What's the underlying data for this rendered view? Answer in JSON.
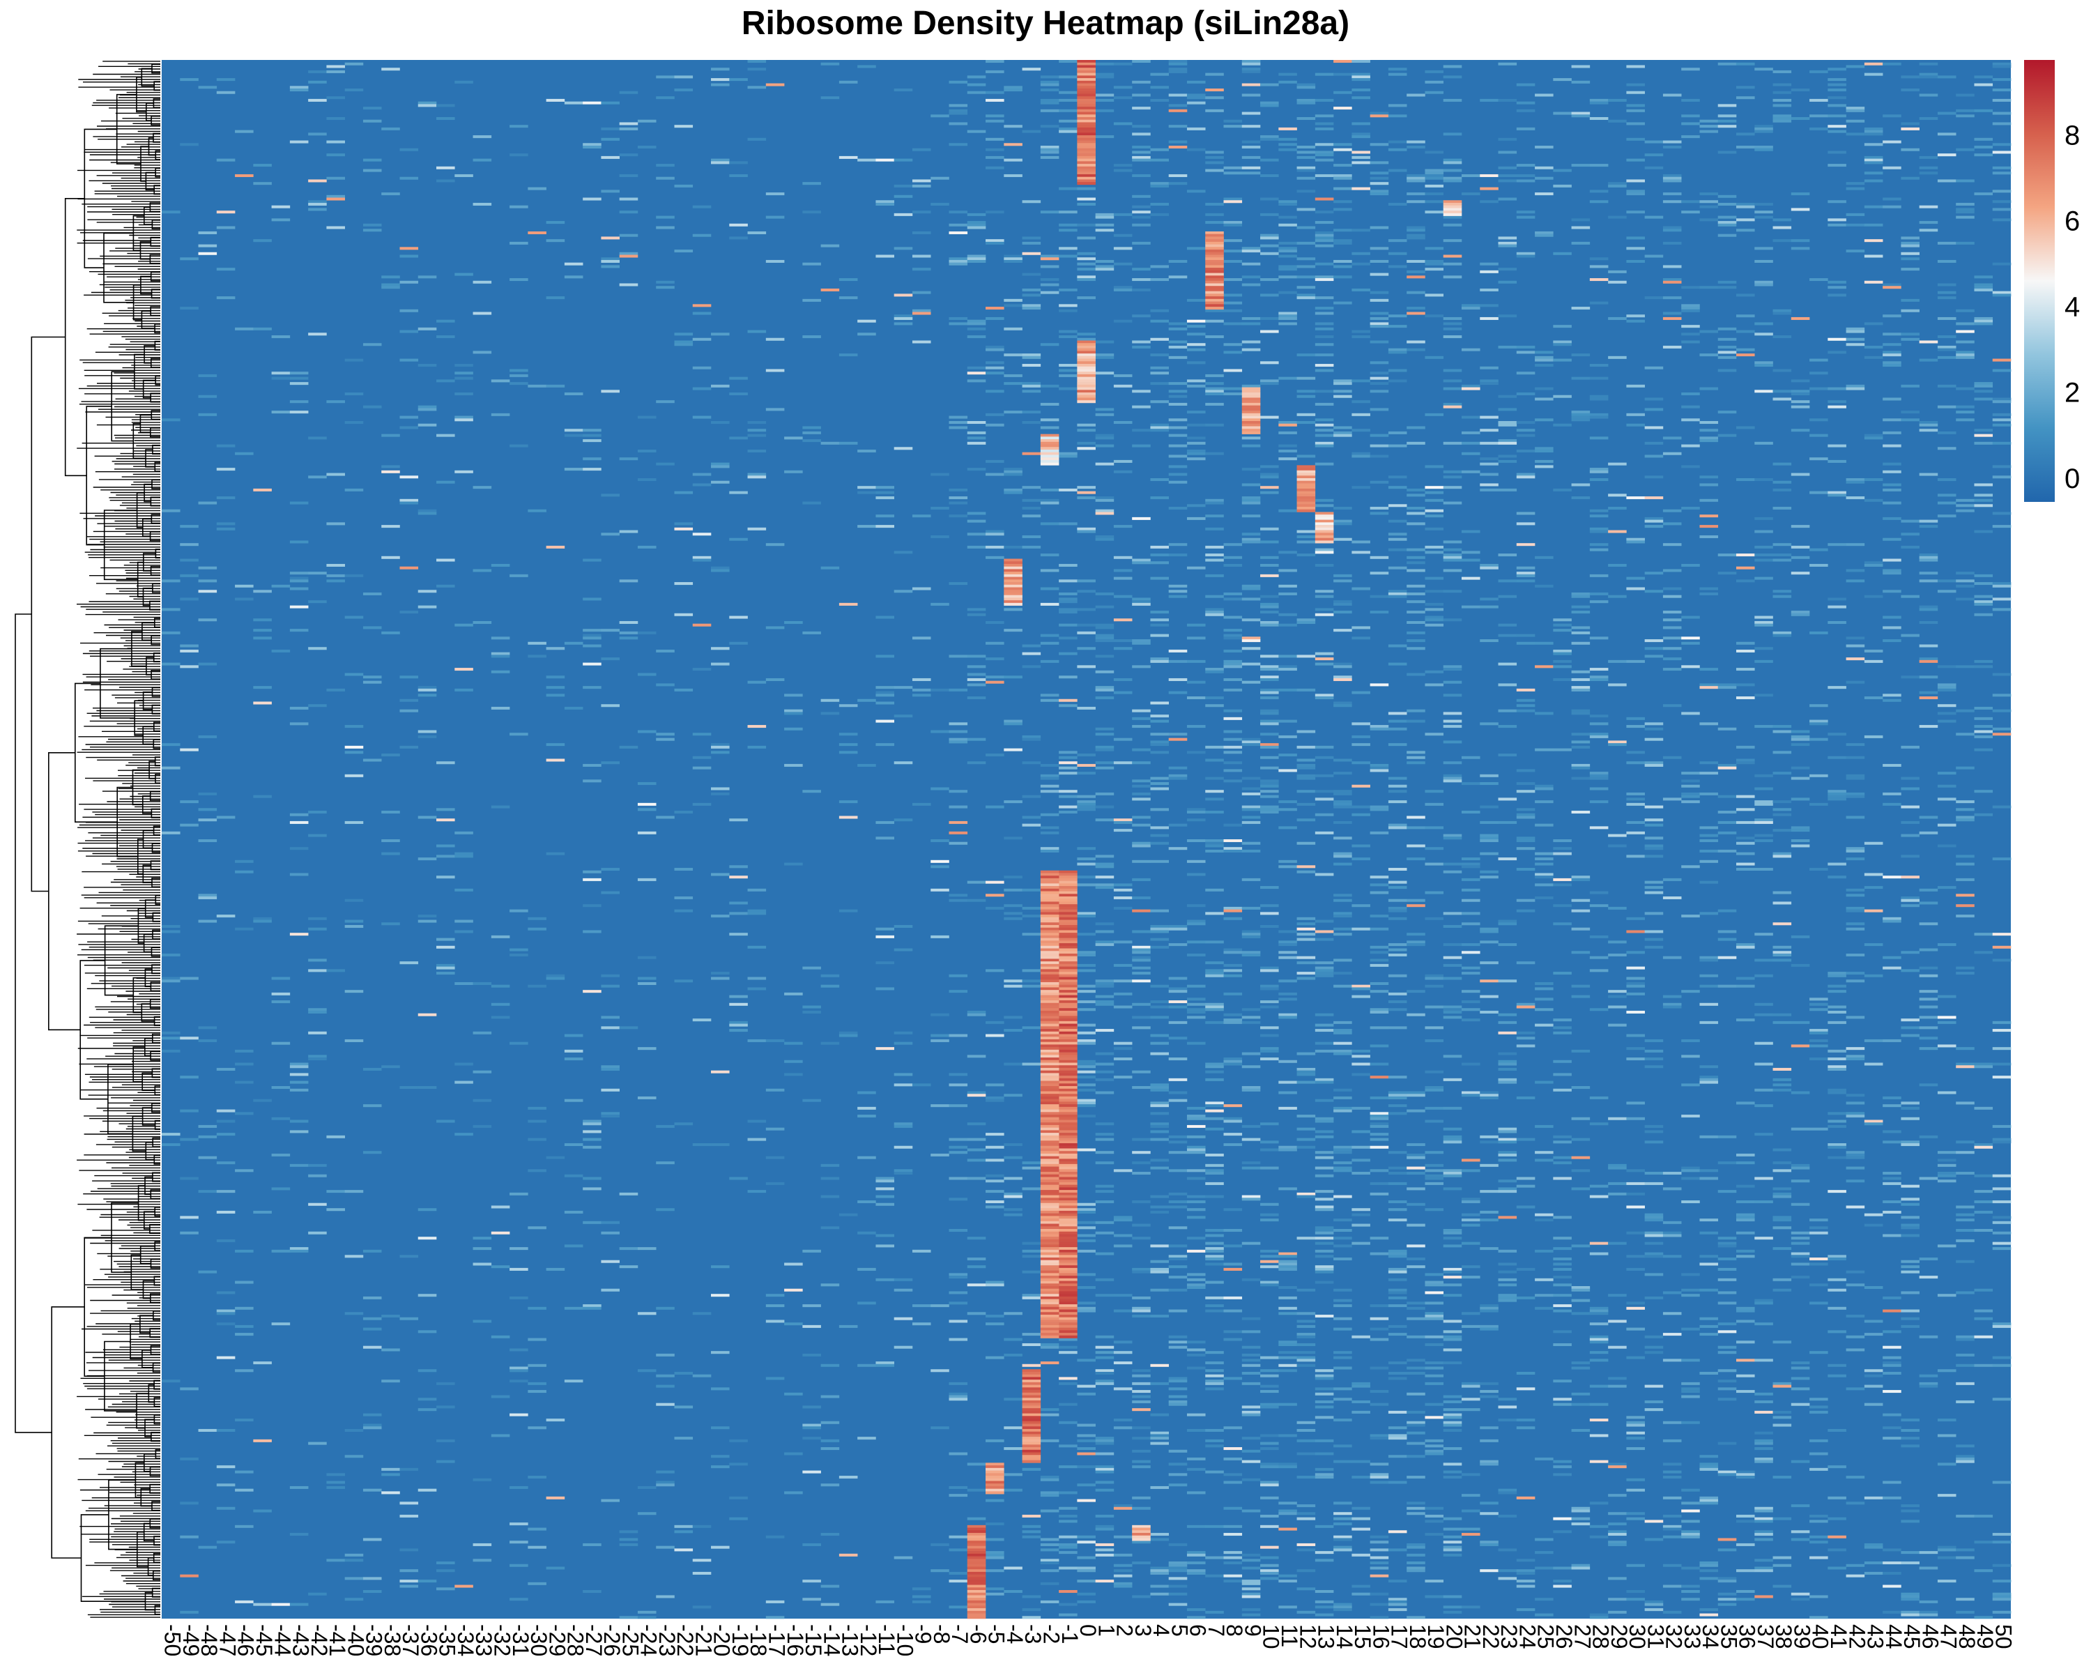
{
  "chart_data": {
    "type": "heatmap",
    "title": "Ribosome Density Heatmap (siLin28a)",
    "x": {
      "categories": [
        "-50",
        "-49",
        "-48",
        "-47",
        "-46",
        "-45",
        "-44",
        "-43",
        "-42",
        "-41",
        "-40",
        "-39",
        "-38",
        "-37",
        "-36",
        "-35",
        "-34",
        "-33",
        "-32",
        "-31",
        "-30",
        "-29",
        "-28",
        "-27",
        "-26",
        "-25",
        "-24",
        "-23",
        "-22",
        "-21",
        "-20",
        "-19",
        "-18",
        "-17",
        "-16",
        "-15",
        "-14",
        "-13",
        "-12",
        "-11",
        "-10",
        "-9",
        "-8",
        "-7",
        "-6",
        "-5",
        "-4",
        "-3",
        "-2",
        "-1",
        "0",
        "1",
        "2",
        "3",
        "4",
        "5",
        "6",
        "7",
        "8",
        "9",
        "10",
        "11",
        "12",
        "13",
        "14",
        "15",
        "16",
        "17",
        "18",
        "19",
        "20",
        "21",
        "22",
        "23",
        "24",
        "25",
        "26",
        "27",
        "28",
        "29",
        "30",
        "31",
        "32",
        "33",
        "34",
        "35",
        "36",
        "37",
        "38",
        "39",
        "40",
        "41",
        "42",
        "43",
        "44",
        "45",
        "46",
        "47",
        "48",
        "49",
        "50"
      ],
      "label_rotation": 90
    },
    "row_dendrogram": true,
    "approx_rows": 600,
    "colorscale": {
      "name": "RdBu (reversed)",
      "colors": [
        "#2166ac",
        "#4393c3",
        "#92c5de",
        "#f7f7f7",
        "#f4a582",
        "#d6604d",
        "#b2182b"
      ],
      "range": [
        -0.5,
        9.8
      ],
      "ticks": [
        0,
        2,
        4,
        6,
        8
      ],
      "tick_labels": [
        "0",
        "2",
        "4",
        "6",
        "8"
      ]
    },
    "background_value": 0,
    "highlights": [
      {
        "column": "-1",
        "rows": [
          0.52,
          0.82
        ],
        "level": 7.5
      },
      {
        "column": "-2",
        "rows": [
          0.52,
          0.82
        ],
        "level": 7.0
      },
      {
        "column": "0",
        "rows": [
          0.0,
          0.08
        ],
        "level": 7.5
      },
      {
        "column": "0",
        "rows": [
          0.18,
          0.22
        ],
        "level": 6.5
      },
      {
        "column": "7",
        "rows": [
          0.11,
          0.16
        ],
        "level": 7.0
      },
      {
        "column": "-3",
        "rows": [
          0.84,
          0.9
        ],
        "level": 7.5
      },
      {
        "column": "-6",
        "rows": [
          0.94,
          1.0
        ],
        "level": 7.5
      },
      {
        "column": "-4",
        "rows": [
          0.32,
          0.35
        ],
        "level": 6.5
      },
      {
        "column": "-2",
        "rows": [
          0.24,
          0.26
        ],
        "level": 5.5
      },
      {
        "column": "9",
        "rows": [
          0.21,
          0.24
        ],
        "level": 6.5
      },
      {
        "column": "12",
        "rows": [
          0.26,
          0.29
        ],
        "level": 6.5
      },
      {
        "column": "13",
        "rows": [
          0.29,
          0.31
        ],
        "level": 6.0
      },
      {
        "column": "-5",
        "rows": [
          0.9,
          0.92
        ],
        "level": 7.0
      },
      {
        "column": "3",
        "rows": [
          0.94,
          0.95
        ],
        "level": 6.0
      },
      {
        "column": "20",
        "rows": [
          0.09,
          0.1
        ],
        "level": 6.0
      }
    ]
  }
}
